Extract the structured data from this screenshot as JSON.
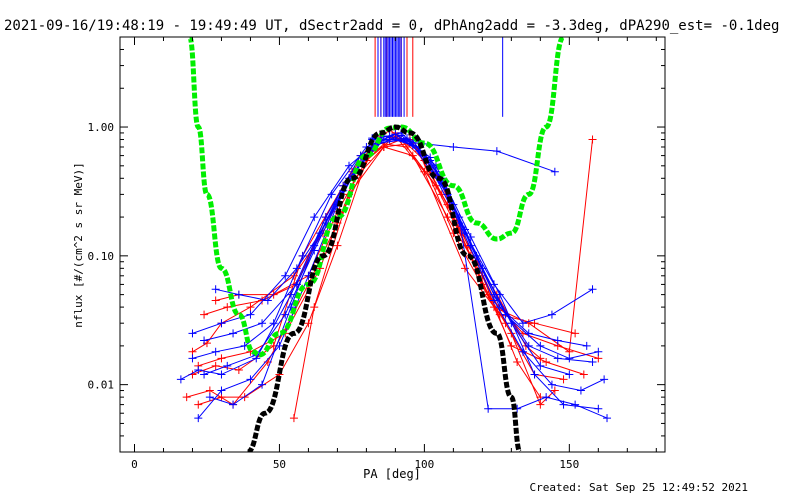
{
  "title": "2021-09-16/19:48:19 - 19:49:49 UT, dSectr2add = 0, dPhAng2add = -3.3deg, dPA290_est= -0.1deg",
  "created": "Created: Sat Sep 25 12:49:52 2021",
  "chart_data": {
    "type": "scatter",
    "xlabel": "PA [deg]",
    "ylabel": "nflux [#/(cm^2 s sr MeV)]",
    "xlim": [
      -5,
      183
    ],
    "ylim": [
      0.003,
      5.0
    ],
    "yscale": "log",
    "xticks": [
      0,
      50,
      100,
      150
    ],
    "yticks": [
      0.01,
      0.1,
      1.0
    ],
    "ytick_labels": [
      "0.01",
      "0.10",
      "1.00"
    ],
    "grid": false,
    "legend": "none",
    "colors": {
      "red": "#ff0000",
      "blue": "#0000ff",
      "green": "#00ee00",
      "black": "#000000"
    },
    "series": [
      {
        "color": "red",
        "points": [
          [
            20,
            0.018
          ],
          [
            25,
            0.021
          ],
          [
            30,
            0.03
          ],
          [
            40,
            0.04
          ],
          [
            55,
            0.07
          ],
          [
            65,
            0.15
          ],
          [
            75,
            0.45
          ],
          [
            85,
            0.85
          ],
          [
            95,
            0.8
          ],
          [
            105,
            0.4
          ],
          [
            115,
            0.12
          ],
          [
            125,
            0.05
          ],
          [
            135,
            0.02
          ],
          [
            140,
            0.016
          ]
        ]
      },
      {
        "color": "red",
        "points": [
          [
            22,
            0.007
          ],
          [
            30,
            0.008
          ],
          [
            38,
            0.008
          ],
          [
            50,
            0.012
          ],
          [
            60,
            0.03
          ],
          [
            70,
            0.12
          ],
          [
            80,
            0.55
          ],
          [
            90,
            0.9
          ],
          [
            100,
            0.55
          ],
          [
            110,
            0.2
          ],
          [
            120,
            0.06
          ],
          [
            130,
            0.025
          ],
          [
            140,
            0.007
          ],
          [
            145,
            0.009
          ]
        ]
      },
      {
        "color": "red",
        "points": [
          [
            20,
            0.012
          ],
          [
            28,
            0.014
          ],
          [
            36,
            0.013
          ],
          [
            48,
            0.02
          ],
          [
            58,
            0.1
          ],
          [
            72,
            0.35
          ],
          [
            84,
            0.75
          ],
          [
            94,
            0.7
          ],
          [
            106,
            0.3
          ],
          [
            118,
            0.09
          ],
          [
            128,
            0.03
          ],
          [
            138,
            0.012
          ],
          [
            148,
            0.011
          ]
        ]
      },
      {
        "color": "red",
        "points": [
          [
            24,
            0.035
          ],
          [
            32,
            0.04
          ],
          [
            44,
            0.045
          ],
          [
            56,
            0.06
          ],
          [
            66,
            0.2
          ],
          [
            78,
            0.6
          ],
          [
            88,
            0.95
          ],
          [
            98,
            0.65
          ],
          [
            110,
            0.15
          ],
          [
            124,
            0.04
          ],
          [
            136,
            0.03
          ],
          [
            150,
            0.018
          ],
          [
            158,
            0.8
          ]
        ]
      },
      {
        "color": "red",
        "points": [
          [
            55,
            0.0055
          ],
          [
            62,
            0.04
          ],
          [
            74,
            0.3
          ],
          [
            86,
            0.7
          ],
          [
            96,
            0.6
          ],
          [
            108,
            0.2
          ],
          [
            120,
            0.07
          ],
          [
            132,
            0.015
          ],
          [
            140,
            0.008
          ]
        ]
      },
      {
        "color": "red",
        "points": [
          [
            18,
            0.008
          ],
          [
            26,
            0.009
          ],
          [
            34,
            0.007
          ],
          [
            46,
            0.015
          ],
          [
            60,
            0.06
          ],
          [
            70,
            0.18
          ],
          [
            82,
            0.65
          ],
          [
            92,
            0.8
          ],
          [
            104,
            0.35
          ],
          [
            116,
            0.1
          ],
          [
            130,
            0.02
          ],
          [
            142,
            0.015
          ],
          [
            155,
            0.012
          ]
        ]
      },
      {
        "color": "red",
        "points": [
          [
            22,
            0.014
          ],
          [
            30,
            0.016
          ],
          [
            40,
            0.018
          ],
          [
            52,
            0.025
          ],
          [
            64,
            0.08
          ],
          [
            76,
            0.4
          ],
          [
            86,
            0.7
          ],
          [
            96,
            0.75
          ],
          [
            108,
            0.25
          ],
          [
            122,
            0.05
          ],
          [
            134,
            0.025
          ],
          [
            146,
            0.02
          ],
          [
            160,
            0.016
          ]
        ]
      },
      {
        "color": "red",
        "points": [
          [
            28,
            0.045
          ],
          [
            36,
            0.05
          ],
          [
            48,
            0.05
          ],
          [
            60,
            0.07
          ],
          [
            70,
            0.22
          ],
          [
            80,
            0.55
          ],
          [
            90,
            0.85
          ],
          [
            100,
            0.45
          ],
          [
            114,
            0.08
          ],
          [
            126,
            0.035
          ],
          [
            138,
            0.03
          ],
          [
            152,
            0.025
          ]
        ]
      },
      {
        "color": "blue",
        "points": [
          [
            16,
            0.011
          ],
          [
            22,
            0.013
          ],
          [
            30,
            0.012
          ],
          [
            42,
            0.016
          ],
          [
            54,
            0.05
          ],
          [
            66,
            0.2
          ],
          [
            78,
            0.6
          ],
          [
            88,
            0.85
          ],
          [
            98,
            0.7
          ],
          [
            110,
            0.25
          ],
          [
            120,
            0.08
          ],
          [
            130,
            0.03
          ],
          [
            140,
            0.014
          ],
          [
            150,
            0.012
          ]
        ]
      },
      {
        "color": "blue",
        "points": [
          [
            22,
            0.0055
          ],
          [
            30,
            0.009
          ],
          [
            40,
            0.011
          ],
          [
            50,
            0.02
          ],
          [
            60,
            0.07
          ],
          [
            70,
            0.25
          ],
          [
            82,
            0.8
          ],
          [
            92,
            0.9
          ],
          [
            102,
            0.55
          ],
          [
            112,
            0.2
          ],
          [
            122,
            0.0065
          ],
          [
            132,
            0.0065
          ],
          [
            142,
            0.008
          ],
          [
            152,
            0.007
          ],
          [
            163,
            0.0055
          ]
        ]
      },
      {
        "color": "blue",
        "points": [
          [
            24,
            0.022
          ],
          [
            34,
            0.025
          ],
          [
            44,
            0.03
          ],
          [
            56,
            0.06
          ],
          [
            66,
            0.18
          ],
          [
            76,
            0.45
          ],
          [
            86,
            0.8
          ],
          [
            96,
            0.78
          ],
          [
            106,
            0.4
          ],
          [
            116,
            0.12
          ],
          [
            126,
            0.04
          ],
          [
            136,
            0.025
          ],
          [
            146,
            0.022
          ],
          [
            156,
            0.02
          ]
        ]
      },
      {
        "color": "blue",
        "points": [
          [
            28,
            0.055
          ],
          [
            36,
            0.05
          ],
          [
            46,
            0.045
          ],
          [
            56,
            0.08
          ],
          [
            64,
            0.15
          ],
          [
            74,
            0.4
          ],
          [
            84,
            0.75
          ],
          [
            94,
            0.8
          ],
          [
            104,
            0.45
          ],
          [
            114,
            0.15
          ],
          [
            124,
            0.06
          ],
          [
            134,
            0.03
          ],
          [
            144,
            0.035
          ],
          [
            158,
            0.055
          ]
        ]
      },
      {
        "color": "blue",
        "points": [
          [
            20,
            0.016
          ],
          [
            28,
            0.018
          ],
          [
            38,
            0.02
          ],
          [
            48,
            0.03
          ],
          [
            58,
            0.1
          ],
          [
            68,
            0.3
          ],
          [
            80,
            0.7
          ],
          [
            90,
            0.88
          ],
          [
            100,
            0.6
          ],
          [
            112,
            0.18
          ],
          [
            124,
            0.045
          ],
          [
            134,
            0.018
          ],
          [
            144,
            0.01
          ],
          [
            154,
            0.009
          ],
          [
            162,
            0.011
          ]
        ]
      },
      {
        "color": "blue",
        "points": [
          [
            82,
            0.82
          ],
          [
            88,
            0.8
          ],
          [
            98,
            0.75
          ],
          [
            110,
            0.7
          ],
          [
            125,
            0.65
          ],
          [
            145,
            0.45
          ]
        ]
      },
      {
        "color": "blue",
        "points": [
          [
            26,
            0.008
          ],
          [
            34,
            0.007
          ],
          [
            44,
            0.01
          ],
          [
            54,
            0.04
          ],
          [
            62,
            0.12
          ],
          [
            72,
            0.35
          ],
          [
            84,
            0.78
          ],
          [
            94,
            0.82
          ],
          [
            104,
            0.5
          ],
          [
            116,
            0.14
          ],
          [
            126,
            0.05
          ],
          [
            138,
            0.012
          ],
          [
            148,
            0.007
          ],
          [
            160,
            0.0065
          ]
        ]
      },
      {
        "color": "blue",
        "points": [
          [
            20,
            0.025
          ],
          [
            30,
            0.03
          ],
          [
            40,
            0.035
          ],
          [
            52,
            0.07
          ],
          [
            62,
            0.2
          ],
          [
            74,
            0.5
          ],
          [
            86,
            0.85
          ],
          [
            96,
            0.72
          ],
          [
            108,
            0.3
          ],
          [
            118,
            0.1
          ],
          [
            128,
            0.035
          ],
          [
            140,
            0.02
          ],
          [
            150,
            0.016
          ],
          [
            160,
            0.018
          ]
        ]
      },
      {
        "color": "blue",
        "points": [
          [
            24,
            0.012
          ],
          [
            32,
            0.014
          ],
          [
            42,
            0.017
          ],
          [
            52,
            0.035
          ],
          [
            62,
            0.11
          ],
          [
            72,
            0.32
          ],
          [
            82,
            0.7
          ],
          [
            92,
            0.86
          ],
          [
            102,
            0.58
          ],
          [
            114,
            0.16
          ],
          [
            124,
            0.05
          ],
          [
            136,
            0.02
          ],
          [
            146,
            0.016
          ],
          [
            158,
            0.015
          ]
        ]
      }
    ],
    "vertical_markers": [
      {
        "color": "red",
        "x": [
          83,
          85,
          87,
          92,
          94,
          96
        ],
        "y_from": 1.2,
        "y_to": 5.0
      },
      {
        "color": "blue",
        "x": [
          84,
          85,
          86,
          86.5,
          87,
          87.5,
          88,
          88.5,
          89,
          89.5,
          90,
          90.5,
          91,
          91.5,
          92,
          93
        ],
        "y_from": 1.2,
        "y_to": 5.0
      },
      {
        "color": "blue",
        "x": [
          127
        ],
        "y_from": 1.2,
        "y_to": 5.0
      }
    ],
    "green_curve": [
      [
        19,
        5.0
      ],
      [
        22,
        1.0
      ],
      [
        25,
        0.3
      ],
      [
        30,
        0.08
      ],
      [
        36,
        0.035
      ],
      [
        41,
        0.018
      ],
      [
        43,
        0.017
      ],
      [
        50,
        0.025
      ],
      [
        60,
        0.06
      ],
      [
        70,
        0.2
      ],
      [
        80,
        0.6
      ],
      [
        88,
        0.98
      ],
      [
        92,
        1.0
      ],
      [
        100,
        0.75
      ],
      [
        110,
        0.35
      ],
      [
        118,
        0.18
      ],
      [
        125,
        0.135
      ],
      [
        130,
        0.15
      ],
      [
        136,
        0.3
      ],
      [
        142,
        1.0
      ],
      [
        148,
        5.0
      ]
    ],
    "black_curve": [
      [
        39,
        0.003
      ],
      [
        45,
        0.006
      ],
      [
        55,
        0.025
      ],
      [
        65,
        0.1
      ],
      [
        75,
        0.4
      ],
      [
        85,
        0.9
      ],
      [
        90,
        1.0
      ],
      [
        95,
        0.9
      ],
      [
        105,
        0.4
      ],
      [
        115,
        0.1
      ],
      [
        125,
        0.025
      ],
      [
        130,
        0.008
      ],
      [
        133,
        0.003
      ]
    ]
  }
}
